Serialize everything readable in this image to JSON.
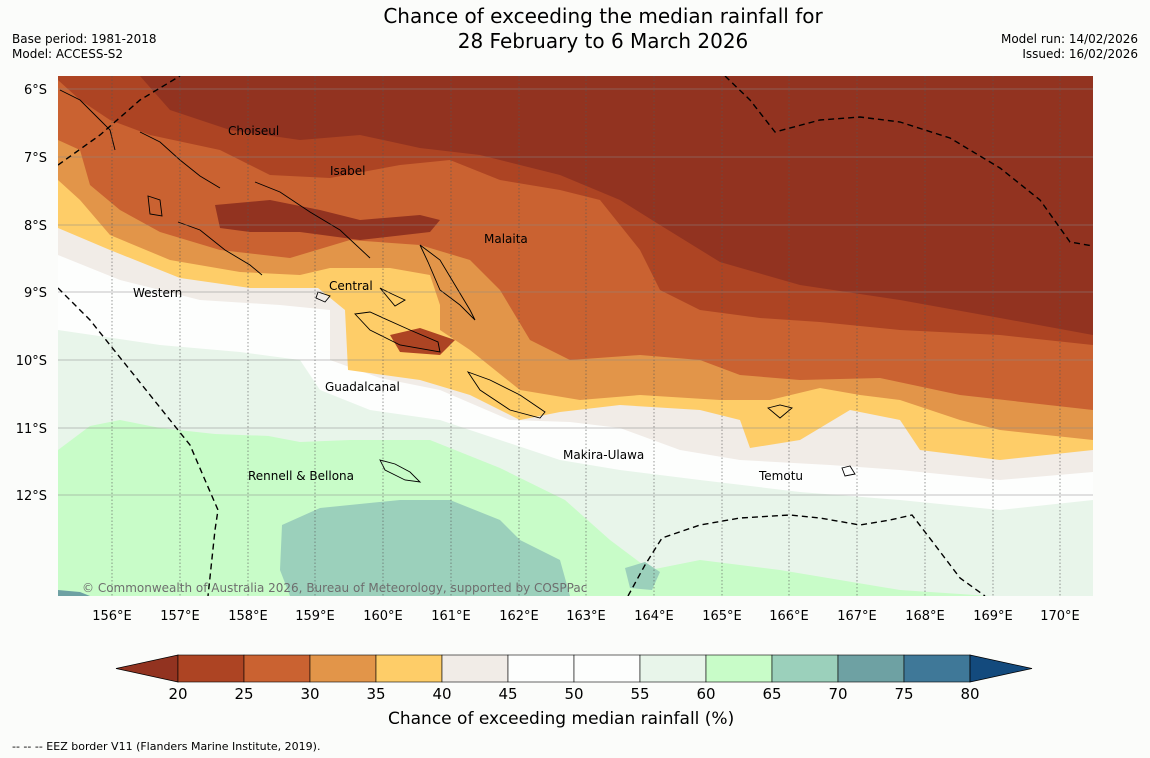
{
  "header": {
    "title_line1": "Chance of exceeding the median rainfall for",
    "title_line2": "28 February to 6 March 2026",
    "base_period": "Base period: 1981-2018",
    "model": "Model: ACCESS-S2",
    "model_run": "Model run: 14/02/2026",
    "issued": "Issued: 16/02/2026"
  },
  "map": {
    "lat_labels": [
      "6°S",
      "7°S",
      "8°S",
      "9°S",
      "10°S",
      "11°S",
      "12°S"
    ],
    "lon_labels": [
      "156°E",
      "157°E",
      "158°E",
      "159°E",
      "160°E",
      "161°E",
      "162°E",
      "163°E",
      "164°E",
      "165°E",
      "166°E",
      "167°E",
      "168°E",
      "169°E",
      "170°E"
    ],
    "regions": [
      {
        "name": "Choiseul"
      },
      {
        "name": "Isabel"
      },
      {
        "name": "Malaita"
      },
      {
        "name": "Western"
      },
      {
        "name": "Central"
      },
      {
        "name": "Guadalcanal"
      },
      {
        "name": "Makira-Ulawa"
      },
      {
        "name": "Temotu"
      },
      {
        "name": "Rennell & Bellona"
      }
    ],
    "copyright": "© Commonwealth of Australia 2026, Bureau of Meteorology, supported by COSPPac"
  },
  "colorbar": {
    "ticks": [
      "20",
      "25",
      "30",
      "35",
      "40",
      "45",
      "50",
      "55",
      "60",
      "65",
      "70",
      "75",
      "80"
    ],
    "colors": [
      "#923320",
      "#ad4423",
      "#ca6231",
      "#e29549",
      "#fecd68",
      "#f1ece7",
      "#fdfefd",
      "#fdfefd",
      "#e8f5ea",
      "#c8fcc8",
      "#9bd0bb",
      "#6ea1a3",
      "#3f7898",
      "#134a7d"
    ],
    "label": "Chance of exceeding median rainfall (%)"
  },
  "footnote": "--  --  -- EEZ border V11 (Flanders Marine Institute, 2019)."
}
